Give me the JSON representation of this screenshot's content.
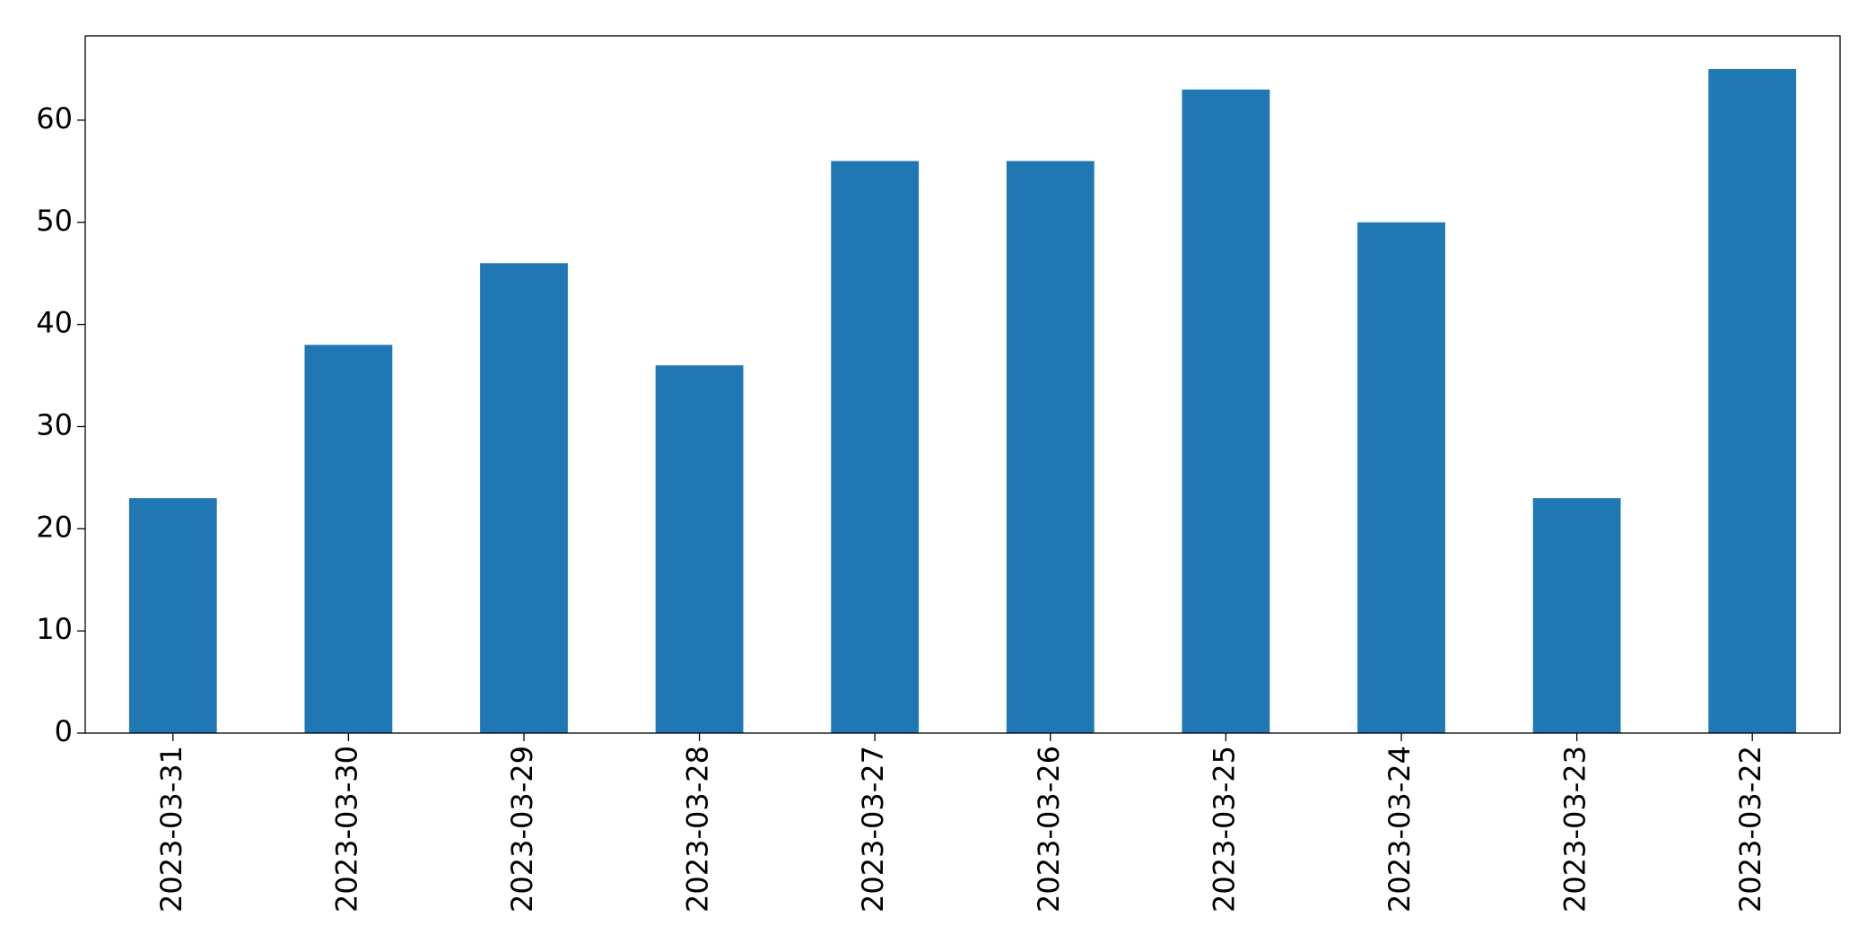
{
  "chart_data": {
    "type": "bar",
    "categories": [
      "2023-03-31",
      "2023-03-30",
      "2023-03-29",
      "2023-03-28",
      "2023-03-27",
      "2023-03-26",
      "2023-03-25",
      "2023-03-24",
      "2023-03-23",
      "2023-03-22"
    ],
    "values": [
      23,
      38,
      46,
      36,
      56,
      56,
      63,
      50,
      23,
      65
    ],
    "color": "#1f77b4",
    "ylim": [
      0,
      68.25
    ],
    "yticks": [
      0,
      10,
      20,
      30,
      40,
      50,
      60
    ],
    "grid": false
  }
}
